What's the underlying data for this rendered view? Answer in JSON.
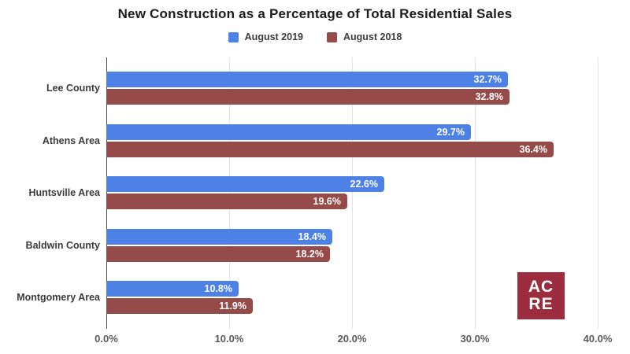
{
  "title": "New Construction as a Percentage of Total Residential Sales",
  "legend": {
    "items": [
      {
        "label": "August 2019",
        "color": "#4d81e6"
      },
      {
        "label": "August 2018",
        "color": "#964b4b"
      }
    ]
  },
  "chart_data": {
    "type": "bar",
    "orientation": "horizontal",
    "title": "New Construction as a Percentage of Total Residential Sales",
    "categories": [
      "Lee County",
      "Athens Area",
      "Huntsville Area",
      "Baldwin County",
      "Montgomery Area"
    ],
    "series": [
      {
        "name": "August 2019",
        "color": "#4d81e6",
        "values": [
          32.7,
          29.7,
          22.6,
          18.4,
          10.8
        ]
      },
      {
        "name": "August 2018",
        "color": "#964b4b",
        "values": [
          32.8,
          36.4,
          19.6,
          18.2,
          11.9
        ]
      }
    ],
    "value_suffix": "%",
    "xlabel": "",
    "ylabel": "",
    "xlim": [
      0,
      40
    ],
    "x_ticks": [
      {
        "value": 0,
        "label": "0.0%"
      },
      {
        "value": 10,
        "label": "10.0%"
      },
      {
        "value": 20,
        "label": "20.0%"
      },
      {
        "value": 30,
        "label": "30.0%"
      },
      {
        "value": 40,
        "label": "40.0%"
      }
    ],
    "grid": true,
    "legend_position": "top"
  },
  "colors": {
    "axis_line": "#4a4a4a",
    "gridline": "#e3e3e3",
    "value_label_text": "#ffffff"
  },
  "logo": {
    "line1": "AC",
    "line2": "RE",
    "color": "#9b2d3f"
  }
}
